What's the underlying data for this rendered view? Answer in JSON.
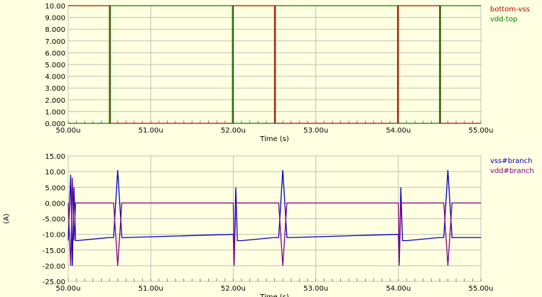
{
  "chart_data": [
    {
      "type": "line",
      "xlabel": "Time (s)",
      "ylabel": "",
      "xlim": [
        50.0,
        55.0
      ],
      "ylim": [
        0.0,
        10.0
      ],
      "x_ticks": [
        "50.00u",
        "51.00u",
        "52.00u",
        "53.00u",
        "54.00u",
        "55.00u"
      ],
      "y_ticks": [
        "0.000",
        "1.000",
        "2.000",
        "3.000",
        "4.000",
        "5.000",
        "6.000",
        "7.000",
        "8.000",
        "9.000",
        "10.00"
      ],
      "grid": true,
      "legend_position": "right",
      "series": [
        {
          "name": "bottom-vss",
          "color": "#c00000",
          "x": [
            50.0,
            50.5,
            50.5,
            52.0,
            52.0,
            52.5,
            52.5,
            54.0,
            54.0,
            54.5,
            54.5,
            55.0
          ],
          "y": [
            10,
            10,
            0,
            0,
            10,
            10,
            0,
            0,
            10,
            10,
            0,
            0
          ]
        },
        {
          "name": "vdd-top",
          "color": "#008000",
          "x": [
            50.0,
            50.51,
            50.51,
            51.99,
            51.99,
            52.51,
            52.51,
            53.99,
            53.99,
            54.51,
            54.51,
            55.0
          ],
          "y": [
            0,
            0,
            10,
            10,
            0,
            0,
            10,
            10,
            0,
            0,
            10,
            10
          ]
        }
      ]
    },
    {
      "type": "line",
      "xlabel": "Time (s)",
      "ylabel": "(A)",
      "xlim": [
        50.0,
        55.0
      ],
      "ylim": [
        -25.0,
        15.0
      ],
      "x_ticks": [
        "50.00u",
        "51.00u",
        "52.00u",
        "53.00u",
        "54.00u",
        "55.00u"
      ],
      "y_ticks": [
        "-25.00",
        "-20.00",
        "-15.00",
        "-10.00",
        "-5.000",
        "0.000",
        "5.000",
        "10.00",
        "15.00"
      ],
      "grid": true,
      "legend_position": "right",
      "series": [
        {
          "name": "vss#branch",
          "color": "#0000c0",
          "x": [
            50.0,
            50.03,
            50.05,
            50.07,
            50.09,
            50.1,
            50.5,
            50.55,
            50.6,
            50.65,
            50.7,
            52.0,
            52.01,
            52.03,
            52.05,
            52.07,
            52.1,
            52.5,
            52.55,
            52.6,
            52.65,
            52.7,
            54.0,
            54.01,
            54.03,
            54.05,
            54.07,
            54.1,
            54.5,
            54.55,
            54.6,
            54.65,
            54.7,
            55.0
          ],
          "y": [
            -12,
            9,
            -20,
            5,
            -12,
            -12,
            -11,
            -11,
            10.5,
            -11,
            -11,
            -10,
            -19,
            5,
            -12,
            -12,
            -12,
            -11,
            -11,
            10.5,
            -11,
            -11,
            -10,
            -19,
            5,
            -12,
            -12,
            -12,
            -11,
            -11,
            10.5,
            -11,
            -11,
            -11
          ]
        },
        {
          "name": "vdd#branch",
          "color": "#800080",
          "x": [
            50.0,
            50.03,
            50.05,
            50.07,
            50.09,
            50.1,
            50.5,
            50.55,
            50.6,
            50.65,
            50.7,
            52.0,
            52.01,
            52.03,
            52.05,
            52.07,
            52.1,
            52.5,
            52.55,
            52.6,
            52.65,
            52.7,
            54.0,
            54.01,
            54.03,
            54.05,
            54.07,
            54.1,
            54.5,
            54.55,
            54.6,
            54.65,
            54.7,
            55.0
          ],
          "y": [
            0,
            -20,
            8,
            -12,
            0,
            0,
            0,
            0,
            -20,
            0,
            0,
            0,
            -20,
            0,
            0,
            0,
            0,
            0,
            0,
            -20,
            0,
            0,
            0,
            -20,
            0,
            0,
            0,
            0,
            0,
            0,
            -20,
            0,
            0,
            0
          ]
        }
      ]
    }
  ]
}
